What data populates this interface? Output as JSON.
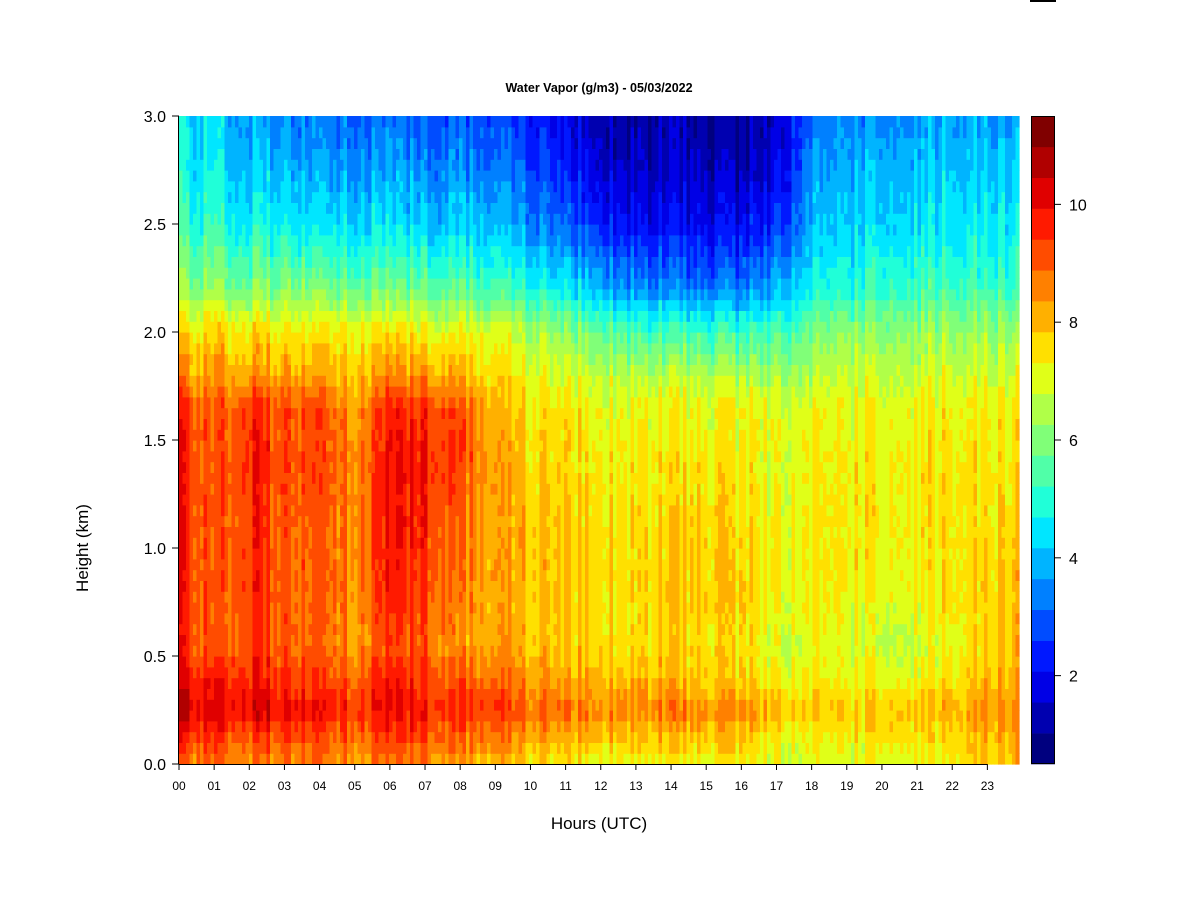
{
  "chart_data": {
    "type": "heatmap",
    "title": "Water Vapor (g/m3) - 05/03/2022",
    "xlabel": "Hours (UTC)",
    "ylabel": "Height (km)",
    "x_ticks": [
      "00",
      "01",
      "02",
      "03",
      "04",
      "05",
      "06",
      "07",
      "08",
      "09",
      "10",
      "11",
      "12",
      "13",
      "14",
      "15",
      "16",
      "17",
      "18",
      "19",
      "20",
      "21",
      "22",
      "23"
    ],
    "xlim": [
      0,
      23.9
    ],
    "y_ticks": [
      "0.0",
      "0.5",
      "1.0",
      "1.5",
      "2.0",
      "2.5",
      "3.0"
    ],
    "ylim": [
      0,
      3.0
    ],
    "colorbar": {
      "range": [
        0.5,
        11.5
      ],
      "ticks": [
        "2",
        "4",
        "6",
        "8",
        "10"
      ],
      "colors": [
        "#00007f",
        "#0000b0",
        "#0000e6",
        "#0018ff",
        "#004cff",
        "#0080ff",
        "#00b4ff",
        "#00e6ff",
        "#20ffd8",
        "#50ffa8",
        "#80ff78",
        "#b0ff48",
        "#e0ff18",
        "#ffe000",
        "#ffb000",
        "#ff8000",
        "#ff4c00",
        "#ff1a00",
        "#e00000",
        "#b00000",
        "#800000"
      ]
    },
    "grid": false,
    "profile_heights_km": [
      0.0,
      0.15,
      0.25,
      0.4,
      0.55,
      0.8,
      1.1,
      1.4,
      1.65,
      1.8,
      2.0,
      2.2,
      2.5,
      2.8,
      3.0
    ],
    "profiles": [
      {
        "hour": 0,
        "values": [
          8.8,
          9.8,
          10.6,
          10.0,
          9.6,
          9.8,
          9.8,
          9.8,
          9.6,
          8.4,
          7.6,
          6.2,
          5.2,
          4.6,
          4.4
        ]
      },
      {
        "hour": 1,
        "values": [
          8.6,
          9.4,
          10.0,
          9.6,
          8.8,
          8.8,
          8.8,
          8.8,
          8.8,
          8.2,
          7.6,
          6.2,
          5.0,
          4.4,
          4.2
        ]
      },
      {
        "hour": 2,
        "values": [
          8.6,
          9.4,
          10.2,
          9.8,
          9.4,
          9.6,
          9.6,
          9.8,
          9.6,
          8.4,
          7.6,
          6.0,
          4.8,
          4.0,
          3.8
        ]
      },
      {
        "hour": 3,
        "values": [
          8.6,
          9.2,
          10.0,
          9.4,
          9.0,
          9.0,
          9.0,
          9.2,
          9.0,
          8.2,
          7.4,
          6.0,
          4.6,
          3.8,
          3.4
        ]
      },
      {
        "hour": 4,
        "values": [
          8.6,
          9.2,
          9.8,
          9.2,
          8.8,
          9.0,
          9.0,
          9.2,
          9.2,
          8.2,
          7.4,
          6.0,
          4.4,
          3.6,
          3.2
        ]
      },
      {
        "hour": 5,
        "values": [
          8.4,
          9.0,
          9.6,
          9.0,
          8.4,
          8.6,
          8.6,
          8.6,
          8.4,
          8.0,
          7.4,
          5.8,
          4.4,
          3.6,
          3.2
        ]
      },
      {
        "hour": 6,
        "values": [
          8.6,
          9.4,
          10.0,
          9.6,
          9.2,
          9.6,
          9.8,
          9.8,
          9.6,
          8.4,
          7.4,
          5.8,
          4.4,
          3.6,
          3.2
        ]
      },
      {
        "hour": 7,
        "values": [
          8.6,
          9.4,
          9.8,
          9.4,
          9.0,
          9.4,
          9.6,
          9.8,
          9.6,
          8.4,
          7.4,
          5.8,
          4.2,
          3.4,
          3.0
        ]
      },
      {
        "hour": 8,
        "values": [
          8.2,
          9.0,
          9.6,
          9.0,
          8.4,
          8.6,
          8.8,
          9.2,
          9.2,
          8.0,
          7.2,
          5.6,
          4.2,
          3.4,
          3.0
        ]
      },
      {
        "hour": 9,
        "values": [
          8.0,
          8.8,
          9.4,
          8.8,
          8.2,
          8.2,
          8.2,
          8.2,
          8.0,
          7.6,
          7.0,
          5.4,
          4.0,
          3.2,
          2.8
        ]
      },
      {
        "hour": 10,
        "values": [
          7.6,
          8.4,
          9.0,
          8.4,
          8.0,
          8.0,
          8.0,
          7.8,
          7.6,
          7.2,
          6.6,
          5.0,
          3.6,
          2.8,
          2.4
        ]
      },
      {
        "hour": 11,
        "values": [
          7.4,
          8.2,
          8.8,
          8.2,
          7.8,
          7.8,
          7.8,
          7.6,
          7.4,
          7.0,
          6.2,
          4.6,
          3.0,
          2.2,
          1.8
        ]
      },
      {
        "hour": 12,
        "values": [
          7.2,
          8.0,
          8.6,
          8.0,
          7.6,
          7.6,
          7.6,
          7.4,
          7.2,
          6.8,
          5.8,
          4.0,
          2.4,
          1.6,
          1.4
        ]
      },
      {
        "hour": 13,
        "values": [
          7.2,
          8.0,
          8.6,
          8.0,
          7.6,
          7.6,
          7.6,
          7.4,
          7.2,
          6.6,
          5.4,
          3.6,
          2.0,
          1.4,
          1.2
        ]
      },
      {
        "hour": 14,
        "values": [
          7.2,
          8.0,
          8.6,
          8.0,
          7.6,
          7.8,
          7.6,
          7.4,
          7.2,
          6.6,
          5.2,
          3.4,
          2.0,
          1.4,
          1.2
        ]
      },
      {
        "hour": 15,
        "values": [
          7.2,
          8.0,
          8.4,
          7.8,
          7.6,
          7.8,
          7.8,
          7.4,
          7.2,
          6.6,
          5.2,
          3.4,
          2.0,
          1.4,
          1.2
        ]
      },
      {
        "hour": 16,
        "values": [
          7.2,
          8.0,
          8.4,
          7.8,
          7.6,
          7.8,
          7.6,
          7.4,
          7.2,
          6.6,
          5.2,
          3.4,
          2.0,
          1.2,
          1.0
        ]
      },
      {
        "hour": 17,
        "values": [
          6.8,
          7.4,
          8.0,
          7.2,
          6.8,
          7.2,
          7.2,
          7.0,
          7.0,
          6.4,
          5.4,
          3.8,
          2.4,
          1.6,
          1.4
        ]
      },
      {
        "hour": 18,
        "values": [
          7.0,
          7.4,
          7.8,
          7.4,
          7.2,
          7.4,
          7.4,
          7.4,
          7.2,
          6.6,
          6.0,
          4.8,
          4.0,
          3.6,
          3.2
        ]
      },
      {
        "hour": 19,
        "values": [
          7.0,
          7.4,
          7.8,
          7.2,
          7.0,
          7.4,
          7.4,
          7.4,
          7.2,
          6.8,
          6.2,
          5.0,
          4.2,
          3.8,
          3.4
        ]
      },
      {
        "hour": 20,
        "values": [
          7.2,
          7.6,
          8.0,
          7.2,
          6.8,
          7.2,
          7.4,
          7.4,
          7.2,
          6.8,
          6.2,
          5.2,
          4.4,
          4.0,
          3.6
        ]
      },
      {
        "hour": 21,
        "values": [
          7.2,
          7.6,
          8.0,
          7.2,
          6.8,
          7.2,
          7.4,
          7.4,
          7.2,
          6.8,
          6.2,
          5.2,
          4.4,
          4.0,
          3.6
        ]
      },
      {
        "hour": 22,
        "values": [
          7.4,
          7.8,
          8.2,
          7.6,
          7.4,
          7.6,
          7.6,
          7.6,
          7.4,
          7.0,
          6.4,
          5.4,
          4.6,
          4.2,
          3.8
        ]
      },
      {
        "hour": 23,
        "values": [
          7.8,
          8.2,
          8.6,
          8.0,
          7.8,
          7.8,
          7.6,
          7.6,
          7.4,
          7.0,
          6.4,
          5.4,
          4.6,
          4.2,
          3.8
        ]
      },
      {
        "hour": 23.9,
        "values": [
          8.0,
          8.4,
          8.6,
          8.2,
          8.0,
          8.0,
          7.8,
          7.6,
          7.4,
          7.0,
          6.4,
          5.4,
          4.6,
          4.2,
          3.8
        ]
      }
    ]
  }
}
